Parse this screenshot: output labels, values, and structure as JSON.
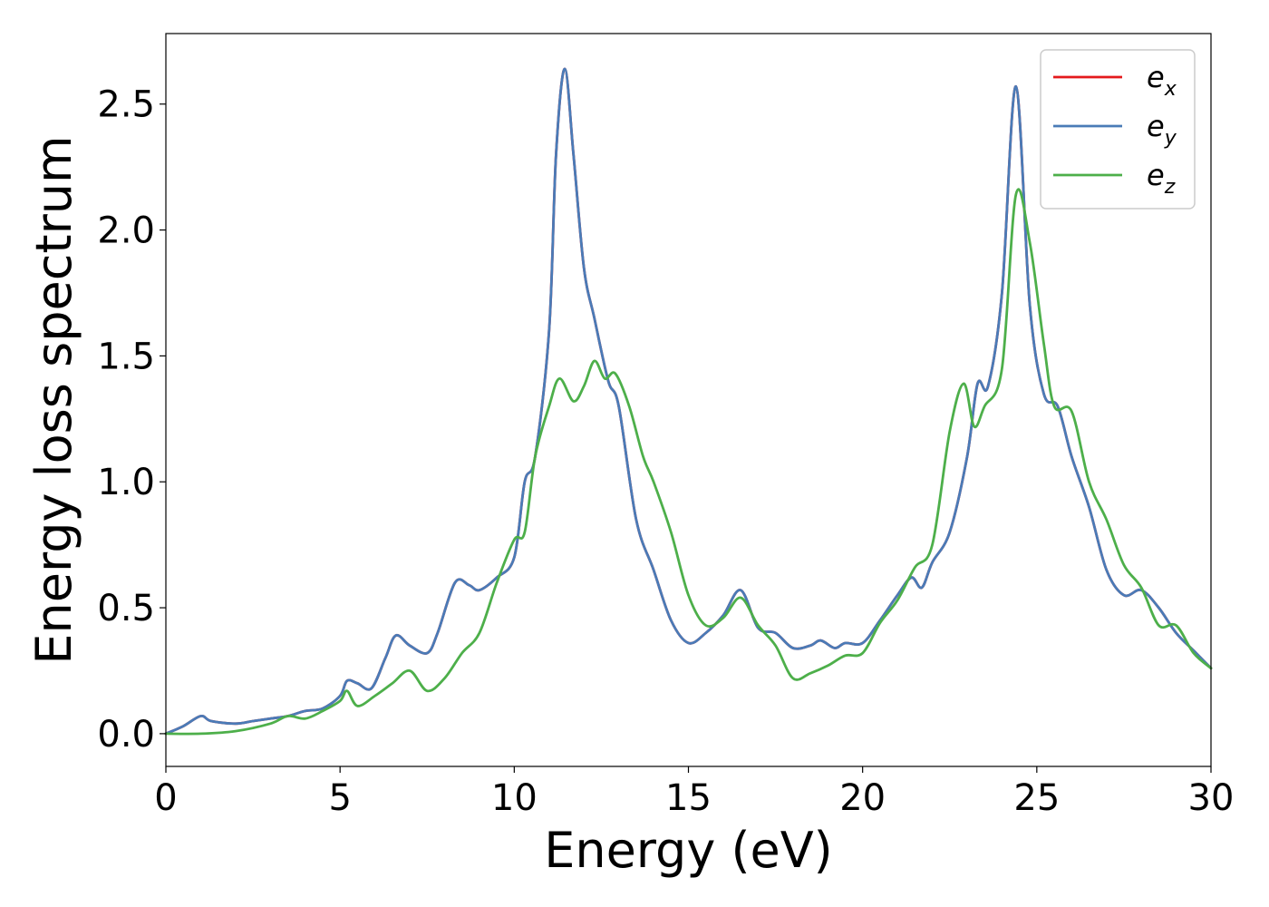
{
  "chart_data": {
    "type": "line",
    "xlabel": "Energy (eV)",
    "ylabel": "Energy loss spectrum",
    "xlim": [
      0,
      30
    ],
    "ylim": [
      -0.13,
      2.78
    ],
    "xticks": [
      "0",
      "5",
      "10",
      "15",
      "20",
      "25",
      "30"
    ],
    "yticks": [
      "0.0",
      "0.5",
      "1.0",
      "1.5",
      "2.0",
      "2.5"
    ],
    "grid": false,
    "legend_position": "top-right",
    "series": [
      {
        "name": "e",
        "subscript": "x",
        "color": "#e41a1c",
        "x": [
          0,
          0.5,
          1.0,
          1.3,
          2.0,
          2.5,
          3.0,
          3.5,
          4.0,
          4.5,
          5.0,
          5.2,
          5.5,
          5.9,
          6.3,
          6.6,
          7.0,
          7.5,
          7.8,
          8.3,
          8.7,
          9.0,
          9.5,
          10.0,
          10.3,
          10.6,
          11.0,
          11.2,
          11.45,
          11.7,
          12.0,
          12.3,
          12.7,
          13.0,
          13.5,
          14.0,
          14.5,
          15.0,
          15.5,
          16.0,
          16.5,
          17.0,
          17.5,
          18.0,
          18.5,
          18.8,
          19.2,
          19.5,
          20.0,
          20.5,
          21.0,
          21.4,
          21.7,
          22.0,
          22.5,
          23.0,
          23.3,
          23.6,
          24.0,
          24.4,
          24.8,
          25.2,
          25.6,
          26.0,
          26.5,
          27.0,
          27.5,
          28.0,
          28.5,
          29.0,
          29.5,
          30.0
        ],
        "y": [
          0.0,
          0.03,
          0.07,
          0.05,
          0.04,
          0.05,
          0.06,
          0.07,
          0.09,
          0.1,
          0.15,
          0.21,
          0.2,
          0.18,
          0.3,
          0.39,
          0.35,
          0.32,
          0.4,
          0.6,
          0.59,
          0.57,
          0.62,
          0.7,
          1.0,
          1.1,
          1.6,
          2.3,
          2.64,
          2.3,
          1.85,
          1.65,
          1.4,
          1.3,
          0.85,
          0.65,
          0.45,
          0.36,
          0.4,
          0.47,
          0.57,
          0.42,
          0.4,
          0.34,
          0.35,
          0.37,
          0.34,
          0.36,
          0.36,
          0.45,
          0.55,
          0.62,
          0.58,
          0.68,
          0.8,
          1.1,
          1.39,
          1.38,
          1.75,
          2.57,
          1.7,
          1.35,
          1.3,
          1.1,
          0.9,
          0.65,
          0.55,
          0.57,
          0.5,
          0.4,
          0.33,
          0.26
        ]
      },
      {
        "name": "e",
        "subscript": "y",
        "color": "#4a7bb7",
        "x": [
          0,
          0.5,
          1.0,
          1.3,
          2.0,
          2.5,
          3.0,
          3.5,
          4.0,
          4.5,
          5.0,
          5.2,
          5.5,
          5.9,
          6.3,
          6.6,
          7.0,
          7.5,
          7.8,
          8.3,
          8.7,
          9.0,
          9.5,
          10.0,
          10.3,
          10.6,
          11.0,
          11.2,
          11.45,
          11.7,
          12.0,
          12.3,
          12.7,
          13.0,
          13.5,
          14.0,
          14.5,
          15.0,
          15.5,
          16.0,
          16.5,
          17.0,
          17.5,
          18.0,
          18.5,
          18.8,
          19.2,
          19.5,
          20.0,
          20.5,
          21.0,
          21.4,
          21.7,
          22.0,
          22.5,
          23.0,
          23.3,
          23.6,
          24.0,
          24.4,
          24.8,
          25.2,
          25.6,
          26.0,
          26.5,
          27.0,
          27.5,
          28.0,
          28.5,
          29.0,
          29.5,
          30.0
        ],
        "y": [
          0.0,
          0.03,
          0.07,
          0.05,
          0.04,
          0.05,
          0.06,
          0.07,
          0.09,
          0.1,
          0.15,
          0.21,
          0.2,
          0.18,
          0.3,
          0.39,
          0.35,
          0.32,
          0.4,
          0.6,
          0.59,
          0.57,
          0.62,
          0.7,
          1.0,
          1.1,
          1.6,
          2.3,
          2.64,
          2.3,
          1.85,
          1.65,
          1.4,
          1.3,
          0.85,
          0.65,
          0.45,
          0.36,
          0.4,
          0.47,
          0.57,
          0.42,
          0.4,
          0.34,
          0.35,
          0.37,
          0.34,
          0.36,
          0.36,
          0.45,
          0.55,
          0.62,
          0.58,
          0.68,
          0.8,
          1.1,
          1.39,
          1.38,
          1.75,
          2.57,
          1.7,
          1.35,
          1.3,
          1.1,
          0.9,
          0.65,
          0.55,
          0.57,
          0.5,
          0.4,
          0.33,
          0.26
        ]
      },
      {
        "name": "e",
        "subscript": "z",
        "color": "#4daf4a",
        "x": [
          0,
          1.0,
          2.0,
          3.0,
          3.5,
          4.0,
          4.5,
          5.0,
          5.2,
          5.5,
          6.0,
          6.5,
          7.0,
          7.5,
          8.0,
          8.5,
          9.0,
          9.5,
          10.0,
          10.3,
          10.6,
          11.0,
          11.3,
          11.7,
          12.0,
          12.3,
          12.6,
          12.9,
          13.3,
          13.7,
          14.0,
          14.5,
          15.0,
          15.5,
          16.0,
          16.5,
          17.0,
          17.5,
          18.0,
          18.5,
          19.0,
          19.5,
          20.0,
          20.5,
          21.0,
          21.5,
          22.0,
          22.5,
          22.9,
          23.2,
          23.5,
          24.0,
          24.4,
          24.8,
          25.2,
          25.5,
          26.0,
          26.5,
          27.0,
          27.5,
          28.0,
          28.5,
          29.0,
          29.5,
          30.0
        ],
        "y": [
          0.0,
          0.0,
          0.01,
          0.04,
          0.07,
          0.06,
          0.09,
          0.13,
          0.17,
          0.11,
          0.15,
          0.2,
          0.25,
          0.17,
          0.22,
          0.32,
          0.4,
          0.6,
          0.77,
          0.8,
          1.1,
          1.3,
          1.41,
          1.32,
          1.38,
          1.48,
          1.41,
          1.43,
          1.3,
          1.1,
          1.0,
          0.8,
          0.55,
          0.43,
          0.46,
          0.54,
          0.43,
          0.35,
          0.22,
          0.24,
          0.27,
          0.31,
          0.32,
          0.44,
          0.53,
          0.66,
          0.75,
          1.2,
          1.39,
          1.22,
          1.3,
          1.45,
          2.14,
          1.95,
          1.55,
          1.3,
          1.28,
          1.0,
          0.85,
          0.67,
          0.58,
          0.43,
          0.43,
          0.32,
          0.26
        ]
      }
    ]
  }
}
